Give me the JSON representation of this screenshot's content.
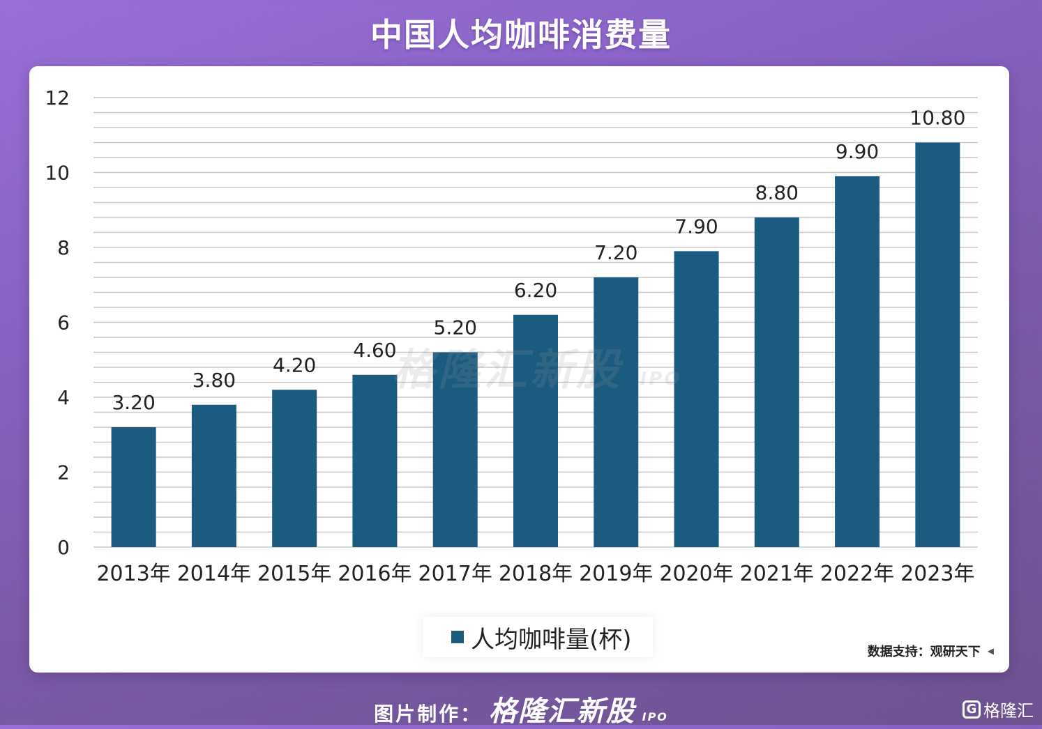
{
  "title": "中国人均咖啡消费量",
  "watermark": {
    "text": "格隆汇新股",
    "sub": "IPO"
  },
  "source": {
    "text": "数据支持：观研天下"
  },
  "footer": {
    "prefix": "图片制作：",
    "brand": "格隆汇新股",
    "sub": "IPO"
  },
  "corner_logo": {
    "icon": "G",
    "text": "格隆汇"
  },
  "colors": {
    "bar": "#1a5b7f",
    "grid": "#c9c9c9",
    "background_top": "#9a6fd6",
    "background_bottom": "#6d5290"
  },
  "chart_data": {
    "type": "bar",
    "title": "中国人均咖啡消费量",
    "xlabel": "",
    "ylabel": "",
    "categories": [
      "2013年",
      "2014年",
      "2015年",
      "2016年",
      "2017年",
      "2018年",
      "2019年",
      "2020年",
      "2021年",
      "2022年",
      "2023年"
    ],
    "series": [
      {
        "name": "人均咖啡量(杯)",
        "values": [
          3.2,
          3.8,
          4.2,
          4.6,
          5.2,
          6.2,
          7.2,
          7.9,
          8.8,
          9.9,
          10.8
        ]
      }
    ],
    "data_labels": [
      "3.20",
      "3.80",
      "4.20",
      "4.60",
      "5.20",
      "6.20",
      "7.20",
      "7.90",
      "8.80",
      "9.90",
      "10.80"
    ],
    "ylim": [
      0,
      12
    ],
    "yticks": [
      0,
      2,
      4,
      6,
      8,
      10,
      12
    ],
    "grid": true,
    "legend": {
      "position": "bottom-center",
      "label": "人均咖啡量(杯)"
    }
  }
}
